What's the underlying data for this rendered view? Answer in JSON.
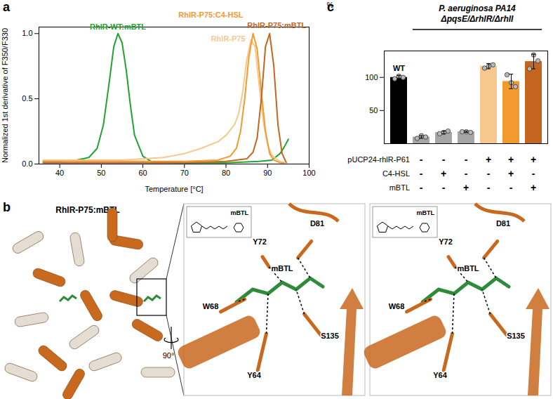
{
  "chart_data": [
    {
      "type": "line",
      "panel_label": "a",
      "x_label": "Temperature [°C]",
      "y_label": "Normalized 1st derivative of F350/F330",
      "xlim": [
        35,
        100
      ],
      "xticks": [
        40,
        50,
        60,
        70,
        80,
        90,
        100
      ],
      "ylim": [
        0,
        1.05
      ],
      "yticks": [
        {
          "value": 0,
          "label": "0.0"
        },
        {
          "value": 0.5,
          "label": "0.5"
        },
        {
          "value": 1,
          "label": "1.0"
        }
      ],
      "series": [
        {
          "name": "RhlR-WT:mBTL",
          "color": "#22a32f",
          "x": [
            36,
            40,
            44,
            47,
            49,
            50.5,
            52,
            53,
            54,
            55,
            56,
            57,
            58,
            60,
            62,
            70,
            80,
            88,
            91,
            93,
            94,
            95
          ],
          "values": [
            0.02,
            0.02,
            0.03,
            0.05,
            0.12,
            0.3,
            0.65,
            0.9,
            1.0,
            0.93,
            0.72,
            0.45,
            0.22,
            0.06,
            0.02,
            0.01,
            0.01,
            0.02,
            0.03,
            0.08,
            0.13,
            0.19
          ]
        },
        {
          "name": "RhlR-P75",
          "color": "#f6c88e",
          "x": [
            36,
            45,
            55,
            60,
            65,
            70,
            74,
            78,
            80,
            82,
            83,
            84,
            85,
            86,
            87,
            88,
            89,
            90,
            91,
            92,
            93,
            94
          ],
          "values": [
            0.03,
            0.03,
            0.03,
            0.04,
            0.05,
            0.08,
            0.12,
            0.17,
            0.22,
            0.3,
            0.38,
            0.55,
            0.8,
            0.95,
            0.9,
            0.6,
            0.32,
            0.15,
            0.07,
            0.04,
            0.02,
            0.01
          ]
        },
        {
          "name": "RhlR-P75:C4-HSL",
          "color": "#f39a2e",
          "x": [
            36,
            50,
            60,
            70,
            78,
            81,
            82.5,
            83.5,
            84.5,
            85.5,
            86.5,
            87.5,
            88.5,
            89.5,
            90.5,
            91.5,
            93,
            94
          ],
          "values": [
            0.02,
            0.02,
            0.02,
            0.02,
            0.03,
            0.06,
            0.12,
            0.25,
            0.5,
            0.82,
            1.0,
            0.88,
            0.55,
            0.25,
            0.08,
            0.03,
            0.01,
            0.01
          ]
        },
        {
          "name": "RhlR-P75:mBTL",
          "color": "#c4661f",
          "x": [
            36,
            50,
            60,
            70,
            80,
            85,
            86.5,
            87.5,
            88.5,
            89.5,
            90.5,
            91.5,
            92.5,
            93.5,
            94.5
          ],
          "values": [
            0.01,
            0.01,
            0.01,
            0.01,
            0.02,
            0.04,
            0.09,
            0.2,
            0.5,
            0.9,
            1.0,
            0.75,
            0.3,
            0.08,
            0.01
          ]
        }
      ]
    },
    {
      "type": "bar",
      "panel_label": "c",
      "y_label": "%",
      "group_label": [
        "P. aeruginosa PA14",
        "ΔpqsE/ΔrhlR/ΔrhlI"
      ],
      "categories": [
        "WT",
        null,
        null,
        null,
        null,
        null,
        null
      ],
      "values": [
        100,
        10,
        17,
        18,
        117,
        94,
        124
      ],
      "errors": [
        3,
        2,
        2,
        1,
        4,
        11,
        11
      ],
      "replicates": [
        [
          98,
          102,
          100
        ],
        [
          8,
          12,
          10
        ],
        [
          15,
          17,
          19
        ],
        [
          18,
          18,
          17
        ],
        [
          114,
          117,
          119
        ],
        [
          104,
          92,
          86
        ],
        [
          113,
          134,
          125
        ]
      ],
      "colors": [
        "#000000",
        "#a6a6a6",
        "#a6a6a6",
        "#a6a6a6",
        "#f6c88e",
        "#f39a2e",
        "#c4661f"
      ],
      "ylim": [
        0,
        140
      ],
      "yticks": [
        50,
        100
      ],
      "table": {
        "rows": [
          {
            "label": "pUCP24-rhlR-P61",
            "values": [
              null,
              "-",
              "-",
              "-",
              "+",
              "+",
              "+"
            ]
          },
          {
            "label": "C4-HSL",
            "values": [
              null,
              "-",
              "+",
              "-",
              "-",
              "+",
              "-"
            ]
          },
          {
            "label": "mBTL",
            "values": [
              null,
              "-",
              "-",
              "+",
              "-",
              "-",
              "+"
            ]
          }
        ]
      }
    }
  ],
  "panel_b": {
    "panel_label": "b",
    "title": "RhlR-P75:mBTL",
    "rotation_label": "90°",
    "views": [
      {
        "inset_label": "mBTL",
        "ligand_label": "mBTL",
        "residues": [
          "D81",
          "Y72",
          "W68",
          "S135",
          "Y64"
        ]
      },
      {
        "inset_label": "mBTL",
        "ligand_label": "mBTL",
        "residues": [
          "D81",
          "Y72",
          "W68",
          "S135",
          "Y64"
        ]
      }
    ]
  }
}
